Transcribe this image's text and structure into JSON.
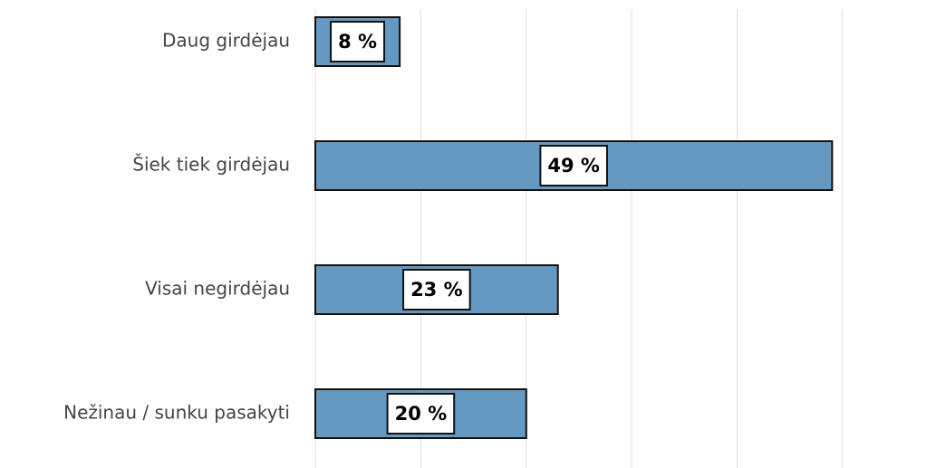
{
  "chart_data": {
    "type": "bar",
    "orientation": "horizontal",
    "categories": [
      "Daug girdėjau",
      "Šiek tiek girdėjau",
      "Visai negirdėjau",
      "Nežinau / sunku pasakyti"
    ],
    "values": [
      8,
      49,
      23,
      20
    ],
    "value_labels": [
      "8 %",
      "49 %",
      "23 %",
      "20 %"
    ],
    "color": "#6699c2",
    "xlim": [
      0,
      50
    ],
    "xticks": [
      0,
      10,
      20,
      30,
      40,
      50
    ],
    "grid": true
  }
}
